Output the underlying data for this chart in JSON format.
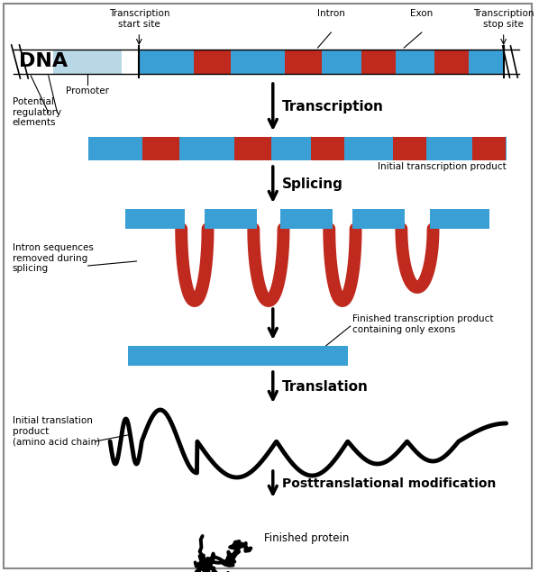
{
  "bg_color": "#ffffff",
  "border_color": "#888888",
  "dna_blue": "#3a9fd4",
  "dna_red": "#c0291e",
  "dna_light_blue": "#b8d8e8",
  "labels": {
    "dna": "DNA",
    "transcription_start": "Transcription\nstart site",
    "intron": "Intron",
    "exon": "Exon",
    "transcription_stop": "Transcription\nstop site",
    "promoter": "Promoter",
    "regulatory": "Potential\nregulatory\nelements",
    "transcription": "Transcription",
    "initial_transcript": "Initial transcription product",
    "splicing": "Splicing",
    "intron_removed": "Intron sequences\nremoved during\nsplicing",
    "finished_transcript": "Finished transcription product\ncontaining only exons",
    "translation": "Translation",
    "initial_translation": "Initial translation\nproduct\n(amino acid chain)",
    "posttranslational": "Posttranslational modification",
    "finished_protein": "Finished protein"
  }
}
